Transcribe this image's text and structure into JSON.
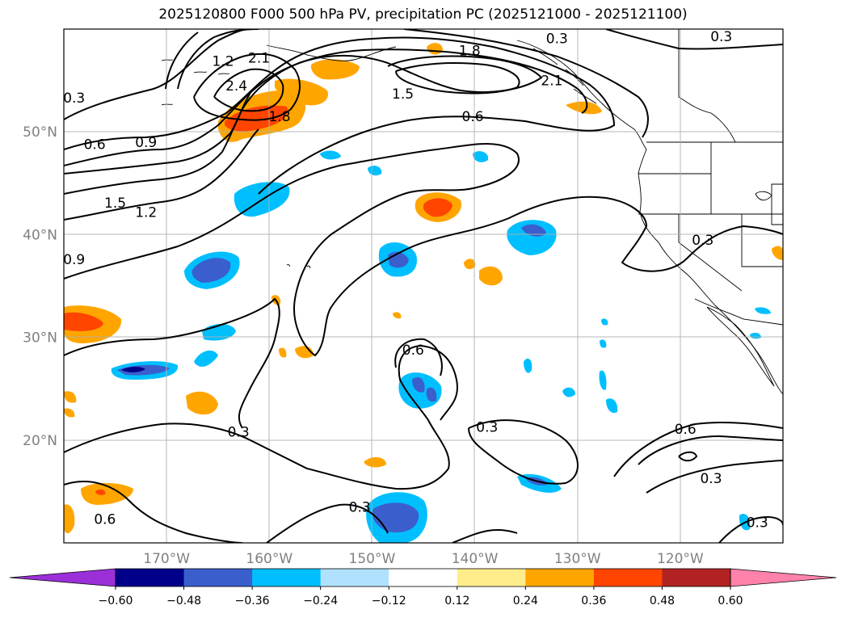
{
  "title": "2025120800 F000 500 hPa PV, precipitation PC (2025121000 - 2025121100)",
  "map": {
    "lon_range": [
      -180,
      -110
    ],
    "lat_range": [
      10,
      60
    ],
    "lat_ticks": [
      {
        "value": 20,
        "label": "20°N"
      },
      {
        "value": 30,
        "label": "30°N"
      },
      {
        "value": 40,
        "label": "40°N"
      },
      {
        "value": 50,
        "label": "50°N"
      }
    ],
    "lon_ticks": [
      {
        "value": -170,
        "label": "170°W"
      },
      {
        "value": -160,
        "label": "160°W"
      },
      {
        "value": -150,
        "label": "150°W"
      },
      {
        "value": -140,
        "label": "140°W"
      },
      {
        "value": -130,
        "label": "130°W"
      },
      {
        "value": -120,
        "label": "120°W"
      }
    ],
    "grid": true,
    "contour_labels": [
      {
        "text": "0.3",
        "lon": -179,
        "lat": 53.3
      },
      {
        "text": "0.6",
        "lon": -177,
        "lat": 48.8
      },
      {
        "text": "0.9",
        "lon": -172,
        "lat": 49.0
      },
      {
        "text": "1.5",
        "lon": -175,
        "lat": 43.1
      },
      {
        "text": "1.2",
        "lon": -172,
        "lat": 42.2
      },
      {
        "text": "0.9",
        "lon": -179,
        "lat": 37.6
      },
      {
        "text": "1.2",
        "lon": -164.5,
        "lat": 56.9
      },
      {
        "text": "2.4",
        "lon": -163.2,
        "lat": 54.5
      },
      {
        "text": "2.1",
        "lon": -161,
        "lat": 57.2
      },
      {
        "text": "1.8",
        "lon": -159,
        "lat": 51.5
      },
      {
        "text": "1.8",
        "lon": -140.5,
        "lat": 57.9
      },
      {
        "text": "1.5",
        "lon": -147,
        "lat": 53.7
      },
      {
        "text": "2.1",
        "lon": -132.5,
        "lat": 55.0
      },
      {
        "text": "0.3",
        "lon": -132,
        "lat": 59.1
      },
      {
        "text": "0.3",
        "lon": -116,
        "lat": 59.3
      },
      {
        "text": "0.6",
        "lon": -140.2,
        "lat": 51.5
      },
      {
        "text": "0.3",
        "lon": -117.8,
        "lat": 39.5
      },
      {
        "text": "0.6",
        "lon": -146,
        "lat": 28.8
      },
      {
        "text": "0.3",
        "lon": -138.8,
        "lat": 21.3
      },
      {
        "text": "0.6",
        "lon": -119.5,
        "lat": 21.1
      },
      {
        "text": "0.3",
        "lon": -117,
        "lat": 16.3
      },
      {
        "text": "0.3",
        "lon": -163,
        "lat": 20.8
      },
      {
        "text": "0.3",
        "lon": -151.2,
        "lat": 13.5
      },
      {
        "text": "0.6",
        "lon": -176,
        "lat": 12.3
      },
      {
        "text": "0.3",
        "lon": -112.5,
        "lat": 12.0
      }
    ]
  },
  "colorbar": {
    "levels": [
      -0.6,
      -0.48,
      -0.36,
      -0.24,
      -0.12,
      0.12,
      0.24,
      0.36,
      0.48,
      0.6
    ],
    "tick_labels": [
      "−0.60",
      "−0.48",
      "−0.36",
      "−0.24",
      "−0.12",
      "0.12",
      "0.24",
      "0.36",
      "0.48",
      "0.60"
    ],
    "colors": [
      "#9b30d9",
      "#00008b",
      "#3a5fcd",
      "#00bfff",
      "#b0e2ff",
      "#ffffff",
      "#ffec8b",
      "#ffa500",
      "#ff4500",
      "#b22222",
      "#ff82ab"
    ]
  }
}
